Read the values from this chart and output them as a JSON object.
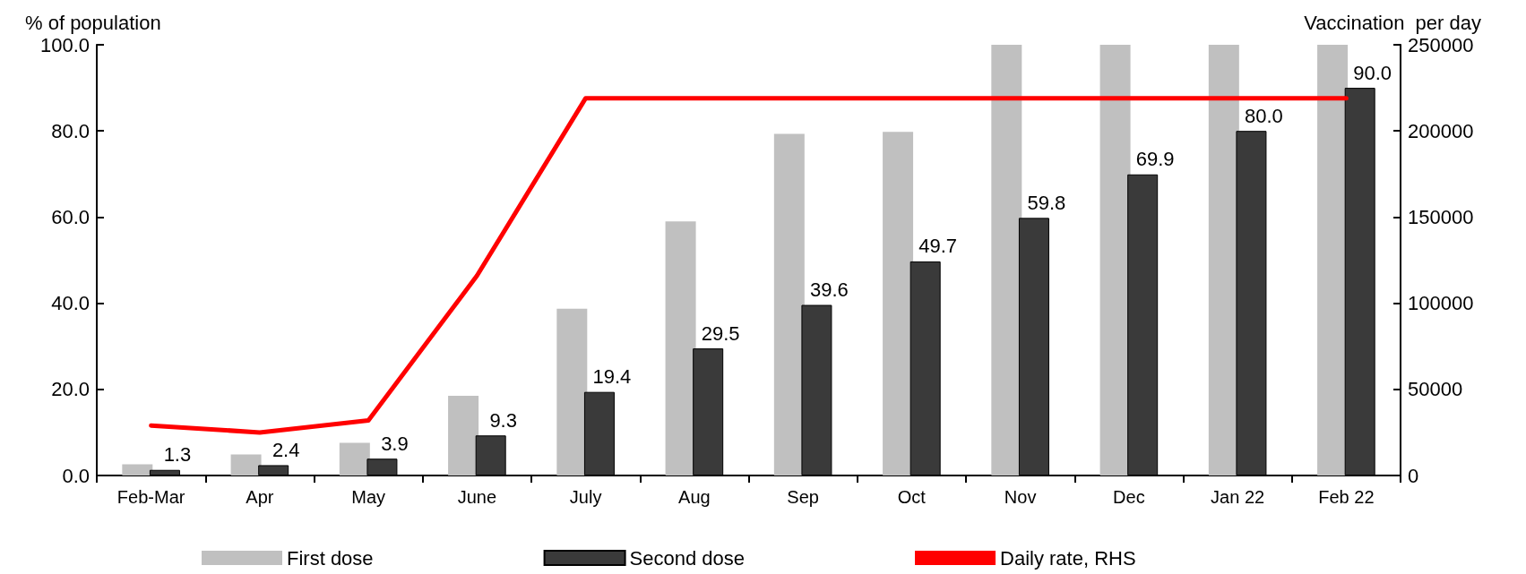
{
  "chart_data": {
    "type": "bar",
    "ylabel": "% of population",
    "y2label": "Vaccination  per day",
    "categories": [
      "Feb-Mar",
      "Apr",
      "May",
      "June",
      "July",
      "Aug",
      "Sep",
      "Oct",
      "Nov",
      "Dec",
      "Jan 22",
      "Feb 22"
    ],
    "series": [
      {
        "name": "First dose",
        "color": "#c0c0c0",
        "values": [
          2.6,
          4.9,
          7.6,
          18.5,
          38.7,
          59.0,
          79.3,
          79.8,
          100,
          100,
          100,
          100
        ]
      },
      {
        "name": "Second dose",
        "color": "#3a3a3a",
        "values": [
          1.3,
          2.4,
          3.9,
          9.3,
          19.4,
          29.5,
          39.6,
          49.7,
          59.8,
          69.9,
          80.0,
          90.0
        ],
        "value_labels": [
          "1.3",
          "2.4",
          "3.9",
          "9.3",
          "19.4",
          "29.5",
          "39.6",
          "49.7",
          "59.8",
          "69.9",
          "80.0",
          "90.0"
        ]
      },
      {
        "name": "Daily rate, RHS",
        "type": "line",
        "axis": "y2",
        "color": "#ff0000",
        "values": [
          29000,
          25000,
          32000,
          116000,
          219000,
          219000,
          219000,
          219000,
          219000,
          219000,
          219000,
          219000
        ]
      }
    ],
    "ylim": [
      0,
      100
    ],
    "yticks": [
      {
        "value": 0,
        "label": "0.0"
      },
      {
        "value": 20,
        "label": "20.0"
      },
      {
        "value": 40,
        "label": "40.0"
      },
      {
        "value": 60,
        "label": "60.0"
      },
      {
        "value": 80,
        "label": "80.0"
      },
      {
        "value": 100,
        "label": "100.0"
      }
    ],
    "y2lim": [
      0,
      250000
    ],
    "y2ticks": [
      0,
      50000,
      100000,
      150000,
      200000,
      250000
    ],
    "grid": false,
    "legend": "bottom",
    "marker": "none",
    "line_style": "solid"
  }
}
